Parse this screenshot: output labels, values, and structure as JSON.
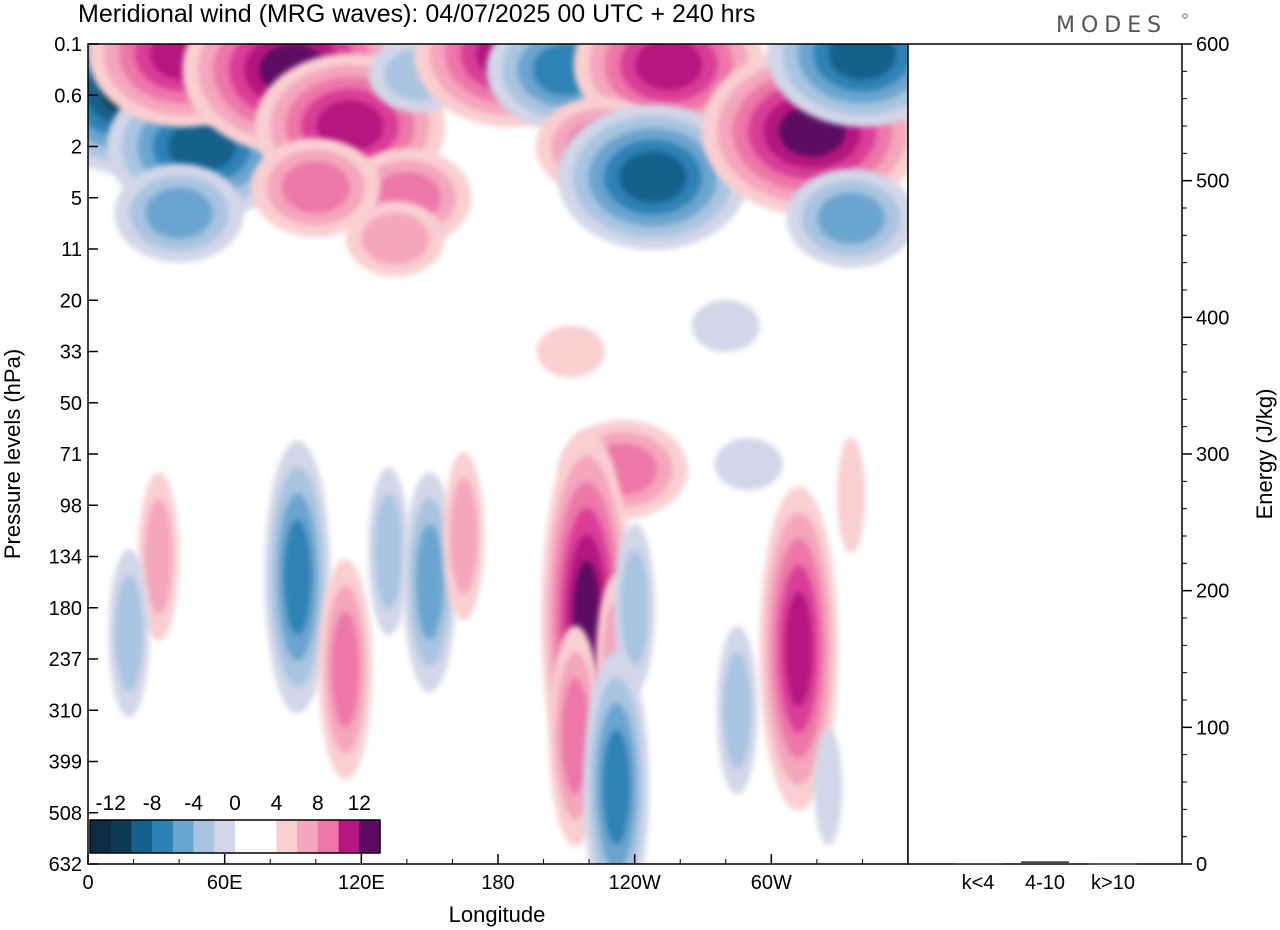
{
  "header": {
    "title": "Meridional wind (MRG waves):  04/07/2025  00 UTC  + 240 hrs",
    "logo": "MODES"
  },
  "colors": {
    "neg_12": "#0b3a55",
    "neg_10": "#13618c",
    "neg_8": "#2d82b5",
    "neg_6": "#6aa5cf",
    "neg_4": "#a9c4e0",
    "neg_2": "#d2d6e8",
    "zero": "#ffffff",
    "pos_2": "#f9cfd0",
    "pos_4": "#f4a6bd",
    "pos_6": "#ec77a8",
    "pos_8": "#da3c98",
    "pos_10": "#b5167f",
    "pos_12": "#5c0a63"
  },
  "chart_data": [
    {
      "type": "heatmap",
      "title": "Meridional wind (MRG waves):  04/07/2025  00 UTC  + 240 hrs",
      "xlabel": "Longitude",
      "ylabel": "Pressure levels (hPa)",
      "x_ticks": [
        "0",
        "60E",
        "120E",
        "180",
        "120W",
        "60W"
      ],
      "y_ticks": [
        "0.1",
        "0.6",
        "2",
        "5",
        "11",
        "20",
        "33",
        "50",
        "71",
        "98",
        "134",
        "180",
        "237",
        "310",
        "399",
        "508",
        "632"
      ],
      "colorbar": {
        "labels": [
          "-12",
          "-8",
          "-4",
          "0",
          "4",
          "8",
          "12"
        ],
        "levels": [
          -12,
          -10,
          -8,
          -6,
          -4,
          -2,
          0,
          2,
          4,
          6,
          8,
          10,
          12
        ]
      },
      "features": [
        {
          "lon": 20,
          "level": 0.9,
          "value": -12
        },
        {
          "lon": 50,
          "level": 2.0,
          "value": -10
        },
        {
          "lon": 40,
          "level": 3.3,
          "value": -6
        },
        {
          "lon": 42,
          "level": 0.2,
          "value": 10
        },
        {
          "lon": 90,
          "level": 0.5,
          "value": 12
        },
        {
          "lon": 115,
          "level": 1.6,
          "value": 10
        },
        {
          "lon": 140,
          "level": 3.0,
          "value": 6
        },
        {
          "lon": 100,
          "level": 2.8,
          "value": 6
        },
        {
          "lon": 135,
          "level": 3.8,
          "value": 4
        },
        {
          "lon": 145,
          "level": 0.6,
          "value": -4
        },
        {
          "lon": 185,
          "level": 0.2,
          "value": 10
        },
        {
          "lon": 210,
          "level": 0.5,
          "value": -8
        },
        {
          "lon": 255,
          "level": 0.4,
          "value": 10
        },
        {
          "lon": 225,
          "level": 2.0,
          "value": 6
        },
        {
          "lon": 248,
          "level": 2.6,
          "value": -10
        },
        {
          "lon": 318,
          "level": 1.7,
          "value": 12
        },
        {
          "lon": 340,
          "level": 0.2,
          "value": -10
        },
        {
          "lon": 335,
          "level": 3.4,
          "value": -6
        },
        {
          "lon": 212,
          "level": 6.0,
          "value": 2
        },
        {
          "lon": 280,
          "level": 5.5,
          "value": -2
        },
        {
          "lon": 235,
          "level": 8.3,
          "value": 6
        },
        {
          "lon": 290,
          "level": 8.2,
          "value": -2
        },
        {
          "lon": 31,
          "level": 10.0,
          "value": 4
        },
        {
          "lon": 18,
          "level": 11.5,
          "value": -4
        },
        {
          "lon": 92,
          "level": 10.4,
          "value": -8
        },
        {
          "lon": 113,
          "level": 12.2,
          "value": 6
        },
        {
          "lon": 132,
          "level": 9.9,
          "value": -4
        },
        {
          "lon": 150,
          "level": 10.5,
          "value": -6
        },
        {
          "lon": 165,
          "level": 9.6,
          "value": 4
        },
        {
          "lon": 219,
          "level": 11.2,
          "value": 12
        },
        {
          "lon": 214,
          "level": 13.5,
          "value": 6
        },
        {
          "lon": 232,
          "level": 12.0,
          "value": 4
        },
        {
          "lon": 240,
          "level": 11.0,
          "value": -4
        },
        {
          "lon": 232,
          "level": 14.5,
          "value": -8
        },
        {
          "lon": 312,
          "level": 11.8,
          "value": 10
        },
        {
          "lon": 285,
          "level": 13.0,
          "value": -4
        },
        {
          "lon": 325,
          "level": 14.5,
          "value": -2
        },
        {
          "lon": 335,
          "level": 8.8,
          "value": 2
        }
      ]
    },
    {
      "type": "bar",
      "categories": [
        "k<4",
        "4-10",
        "k>10"
      ],
      "values": [
        0.5,
        2,
        0.3
      ],
      "ylabel": "Energy (J/kg)",
      "ylim": [
        0,
        600
      ],
      "y_ticks": [
        "0",
        "100",
        "200",
        "300",
        "400",
        "500",
        "600"
      ]
    }
  ]
}
